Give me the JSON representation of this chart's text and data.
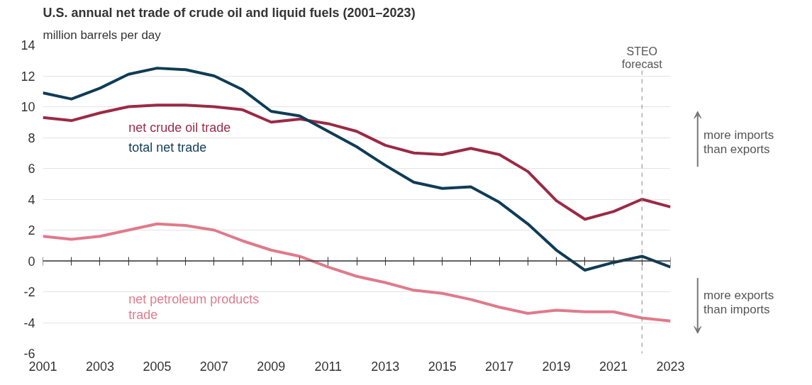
{
  "chart_data": {
    "type": "line",
    "title": "U.S. annual net trade of crude oil and liquid fuels (2001–2023)",
    "ylabel": "million barrels per day",
    "x": [
      2001,
      2002,
      2003,
      2004,
      2005,
      2006,
      2007,
      2008,
      2009,
      2010,
      2011,
      2012,
      2013,
      2014,
      2015,
      2016,
      2017,
      2018,
      2019,
      2020,
      2021,
      2022,
      2023
    ],
    "series": [
      {
        "name": "net crude oil trade",
        "color": "#9b2a45",
        "values": [
          9.3,
          9.1,
          9.6,
          10.0,
          10.1,
          10.1,
          10.0,
          9.8,
          9.0,
          9.2,
          8.9,
          8.4,
          7.5,
          7.0,
          6.9,
          7.3,
          6.9,
          5.8,
          3.9,
          2.7,
          3.2,
          4.0,
          3.5
        ]
      },
      {
        "name": "total net trade",
        "color": "#0f3c56",
        "values": [
          10.9,
          10.5,
          11.2,
          12.1,
          12.5,
          12.4,
          12.0,
          11.1,
          9.7,
          9.4,
          8.4,
          7.4,
          6.2,
          5.1,
          4.7,
          4.8,
          3.8,
          2.4,
          0.7,
          -0.6,
          -0.1,
          0.3,
          -0.4
        ]
      },
      {
        "name": "net petroleum products trade",
        "color": "#e07a8b",
        "values": [
          1.6,
          1.4,
          1.6,
          2.0,
          2.4,
          2.3,
          2.0,
          1.3,
          0.7,
          0.3,
          -0.4,
          -1.0,
          -1.4,
          -1.9,
          -2.1,
          -2.5,
          -3.0,
          -3.4,
          -3.2,
          -3.3,
          -3.3,
          -3.7,
          -3.9
        ]
      }
    ],
    "xlim": [
      2001,
      2023
    ],
    "ylim": [
      -6,
      14
    ],
    "xticks": [
      2001,
      {
        "value": 2002,
        "label": null
      },
      2003,
      {
        "value": 2004,
        "label": null
      },
      2005,
      {
        "value": 2006,
        "label": null
      },
      2007,
      {
        "value": 2008,
        "label": null
      },
      2009,
      {
        "value": 2010,
        "label": null
      },
      2011,
      {
        "value": 2012,
        "label": null
      },
      2013,
      {
        "value": 2014,
        "label": null
      },
      2015,
      {
        "value": 2016,
        "label": null
      },
      2017,
      {
        "value": 2018,
        "label": null
      },
      2019,
      {
        "value": 2020,
        "label": null
      },
      2021,
      {
        "value": 2022,
        "label": null
      },
      2023
    ],
    "yticks": [
      -6,
      -4,
      -2,
      0,
      2,
      4,
      6,
      8,
      10,
      12,
      14
    ],
    "ref_lines": [
      {
        "axis": "x",
        "value": 2022,
        "label": "STEO\nforecast",
        "color": "#888888",
        "line_style": "dashed"
      },
      {
        "axis": "y",
        "value": 0,
        "label": null,
        "color": "#333333",
        "line_style": "solid"
      }
    ],
    "annotations": [
      "more imports\nthan exports",
      "more exports\nthan imports"
    ],
    "grid": "y",
    "legend": false,
    "line_style": "solid",
    "marker": "none"
  }
}
